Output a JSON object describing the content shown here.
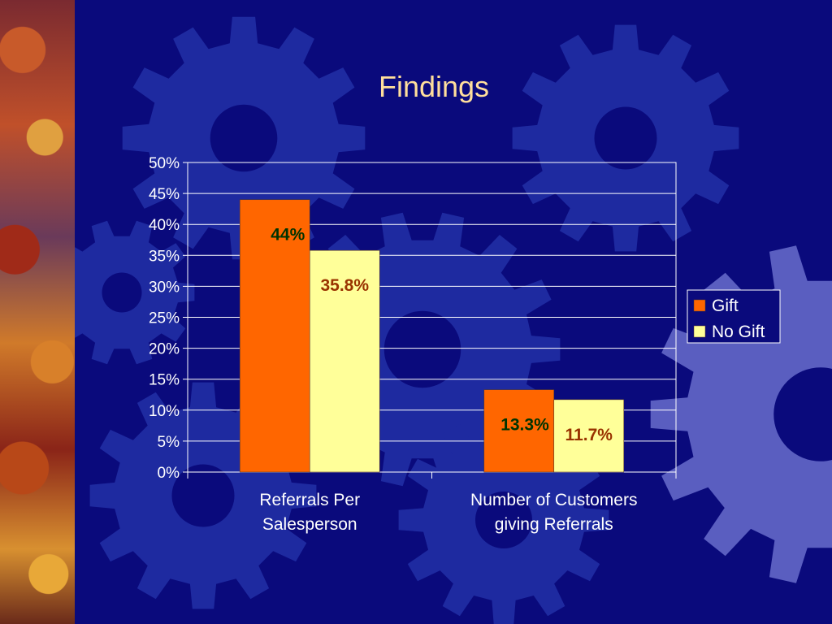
{
  "slide": {
    "title": "Findings"
  },
  "colors": {
    "background": "#0a0a7c",
    "gear": "#1e2aa0",
    "gear_light": "#5a5ec0",
    "title": "#ffdf9c",
    "gift": "#ff6600",
    "no_gift": "#ffff99",
    "label_gift": "#003300",
    "label_no_gift": "#993300",
    "axis": "#ffffff"
  },
  "chart_data": {
    "type": "bar",
    "categories": [
      [
        "Referrals Per",
        "Salesperson"
      ],
      [
        "Number of Customers",
        "giving Referrals"
      ]
    ],
    "series": [
      {
        "name": "Gift",
        "values": [
          0.44,
          0.133
        ],
        "labels": [
          "44%",
          "13.3%"
        ]
      },
      {
        "name": "No Gift",
        "values": [
          0.358,
          0.117
        ],
        "labels": [
          "35.8%",
          "11.7%"
        ]
      }
    ],
    "yticks": [
      "0%",
      "5%",
      "10%",
      "15%",
      "20%",
      "25%",
      "30%",
      "35%",
      "40%",
      "45%",
      "50%"
    ],
    "ylim": [
      0,
      0.5
    ],
    "grid": true,
    "legend": "right"
  }
}
